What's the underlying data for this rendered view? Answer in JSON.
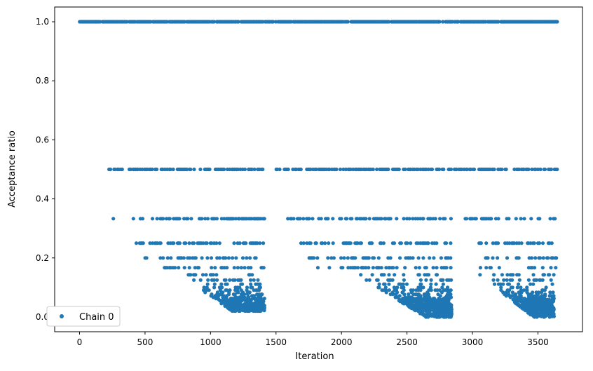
{
  "chart_data": {
    "type": "scatter",
    "xlabel": "Iteration",
    "ylabel": "Acceptance ratio",
    "xlim": [
      -190,
      3840
    ],
    "ylim": [
      -0.05,
      1.05
    ],
    "x_ticks": [
      0,
      500,
      1000,
      1500,
      2000,
      2500,
      3000,
      3500
    ],
    "x_tick_labels": [
      "0",
      "500",
      "1000",
      "1500",
      "2000",
      "2500",
      "3000",
      "3500"
    ],
    "y_ticks": [
      0.0,
      0.2,
      0.4,
      0.6,
      0.8,
      1.0
    ],
    "y_tick_labels": [
      "0.0",
      "0.2",
      "0.4",
      "0.6",
      "0.8",
      "1.0"
    ],
    "grid": false,
    "legend": {
      "placement": "lower-left",
      "entries": [
        "Chain 0"
      ]
    },
    "marker_color": "#1f77b4",
    "series": [
      {
        "name": "Chain 0",
        "bands": [
          {
            "y": 1.0,
            "ranges": [
              [
                0,
                1170
              ],
              [
                1185,
                1215
              ],
              [
                1235,
                3650
              ]
            ],
            "density": 0.95
          },
          {
            "y": 0.5,
            "ranges": [
              [
                225,
                330
              ],
              [
                370,
                1410
              ],
              [
                1500,
                1530
              ],
              [
                1555,
                3650
              ]
            ],
            "density": 0.6
          },
          {
            "y": 0.333,
            "ranges": [
              [
                255,
                265
              ],
              [
                400,
                1410
              ],
              [
                1590,
                2840
              ],
              [
                2935,
                3650
              ]
            ],
            "density": 0.45
          },
          {
            "y": 0.25,
            "ranges": [
              [
                430,
                1410
              ],
              [
                1690,
                2840
              ],
              [
                3030,
                3650
              ]
            ],
            "density": 0.4
          },
          {
            "y": 0.2,
            "ranges": [
              [
                490,
                1410
              ],
              [
                1750,
                2840
              ],
              [
                3090,
                3650
              ]
            ],
            "density": 0.35
          },
          {
            "y": 0.167,
            "ranges": [
              [
                620,
                1410
              ],
              [
                1790,
                2840
              ],
              [
                3050,
                3650
              ]
            ],
            "density": 0.3
          }
        ],
        "sparse_clusters": [
          {
            "x_range": [
              700,
              1410
            ],
            "y_range": [
              0.02,
              0.16
            ]
          },
          {
            "x_range": [
              2050,
              2840
            ],
            "y_range": [
              0.0,
              0.16
            ]
          },
          {
            "x_range": [
              3000,
              3620
            ],
            "y_range": [
              0.0,
              0.16
            ]
          }
        ]
      }
    ]
  }
}
